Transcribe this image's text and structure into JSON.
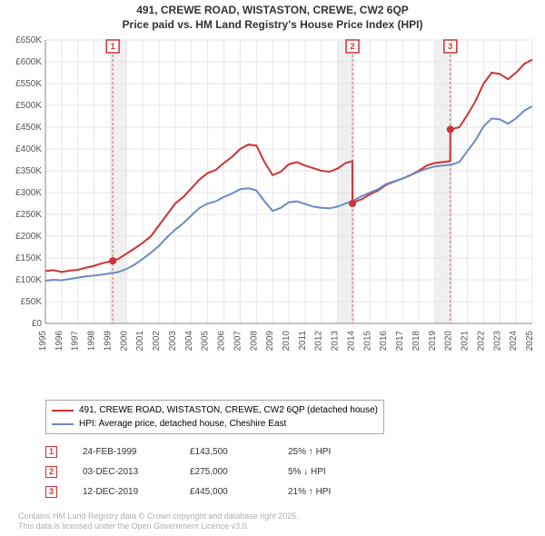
{
  "title": {
    "line1": "491, CREWE ROAD, WISTASTON, CREWE, CW2 6QP",
    "line2": "Price paid vs. HM Land Registry's House Price Index (HPI)"
  },
  "chart": {
    "type": "line",
    "background_color": "#ffffff",
    "grid_color": "#e6e6e6",
    "axis_color": "#888888",
    "shaded_band_color": "#f0f0f0",
    "marker_line_color": "#cc6666",
    "marker_box_border": "#cc3333",
    "marker_text_color": "#cc3333",
    "title_color": "#333333",
    "tick_label_color": "#555555",
    "title_fontsize": 12,
    "tick_fontsize": 10,
    "x_years": [
      1995,
      1996,
      1997,
      1998,
      1999,
      2000,
      2001,
      2002,
      2003,
      2004,
      2005,
      2006,
      2007,
      2008,
      2009,
      2010,
      2011,
      2012,
      2013,
      2014,
      2015,
      2016,
      2017,
      2018,
      2019,
      2020,
      2021,
      2022,
      2023,
      2024,
      2025
    ],
    "xlim_min": 1995,
    "xlim_max": 2025,
    "y_ticks": [
      0,
      50,
      100,
      150,
      200,
      250,
      300,
      350,
      400,
      450,
      500,
      550,
      600,
      650
    ],
    "y_tick_labels": [
      "£0",
      "£50K",
      "£100K",
      "£150K",
      "£200K",
      "£250K",
      "£300K",
      "£350K",
      "£400K",
      "£450K",
      "£500K",
      "£550K",
      "£600K",
      "£650K"
    ],
    "ylim_min": 0,
    "ylim_max": 650,
    "shaded_bands": [
      {
        "start": 1999,
        "end": 2000
      },
      {
        "start": 2013,
        "end": 2014
      },
      {
        "start": 2019,
        "end": 2020
      }
    ],
    "sale_markers": [
      {
        "num": "1",
        "year": 1999.15,
        "price": 143.5
      },
      {
        "num": "2",
        "year": 2013.92,
        "price": 275
      },
      {
        "num": "3",
        "year": 2019.95,
        "price": 445
      }
    ],
    "series": [
      {
        "name": "price_paid",
        "label": "491, CREWE ROAD, WISTASTON, CREWE, CW2 6QP (detached house)",
        "color": "#cc3333",
        "line_width": 2,
        "data": [
          [
            1995,
            120
          ],
          [
            1995.5,
            122
          ],
          [
            1996,
            118
          ],
          [
            1996.5,
            121
          ],
          [
            1997,
            123
          ],
          [
            1997.5,
            128
          ],
          [
            1998,
            132
          ],
          [
            1998.5,
            138
          ],
          [
            1999.15,
            143.5
          ],
          [
            1999.5,
            148
          ],
          [
            2000,
            160
          ],
          [
            2000.5,
            172
          ],
          [
            2001,
            185
          ],
          [
            2001.5,
            200
          ],
          [
            2002,
            225
          ],
          [
            2002.5,
            250
          ],
          [
            2003,
            275
          ],
          [
            2003.5,
            290
          ],
          [
            2004,
            310
          ],
          [
            2004.5,
            330
          ],
          [
            2005,
            345
          ],
          [
            2005.5,
            352
          ],
          [
            2006,
            368
          ],
          [
            2006.5,
            382
          ],
          [
            2007,
            400
          ],
          [
            2007.5,
            410
          ],
          [
            2008,
            408
          ],
          [
            2008.5,
            370
          ],
          [
            2009,
            340
          ],
          [
            2009.5,
            348
          ],
          [
            2010,
            365
          ],
          [
            2010.5,
            370
          ],
          [
            2011,
            362
          ],
          [
            2011.5,
            356
          ],
          [
            2012,
            350
          ],
          [
            2012.5,
            348
          ],
          [
            2013,
            355
          ],
          [
            2013.5,
            368
          ],
          [
            2013.91,
            372
          ],
          [
            2013.92,
            275
          ],
          [
            2014,
            278
          ],
          [
            2014.5,
            285
          ],
          [
            2015,
            296
          ],
          [
            2015.5,
            305
          ],
          [
            2016,
            318
          ],
          [
            2016.5,
            325
          ],
          [
            2017,
            332
          ],
          [
            2017.5,
            340
          ],
          [
            2018,
            350
          ],
          [
            2018.5,
            362
          ],
          [
            2019,
            368
          ],
          [
            2019.5,
            370
          ],
          [
            2019.94,
            372
          ],
          [
            2019.95,
            445
          ],
          [
            2020,
            445
          ],
          [
            2020.5,
            450
          ],
          [
            2021,
            478
          ],
          [
            2021.5,
            510
          ],
          [
            2022,
            550
          ],
          [
            2022.5,
            575
          ],
          [
            2023,
            572
          ],
          [
            2023.5,
            560
          ],
          [
            2024,
            575
          ],
          [
            2024.5,
            595
          ],
          [
            2025,
            605
          ]
        ]
      },
      {
        "name": "hpi",
        "label": "HPI: Average price, detached house, Cheshire East",
        "color": "#6b8bc4",
        "line_width": 2,
        "data": [
          [
            1995,
            98
          ],
          [
            1995.5,
            100
          ],
          [
            1996,
            99
          ],
          [
            1996.5,
            102
          ],
          [
            1997,
            105
          ],
          [
            1997.5,
            108
          ],
          [
            1998,
            110
          ],
          [
            1998.5,
            112
          ],
          [
            1999,
            115
          ],
          [
            1999.5,
            118
          ],
          [
            2000,
            125
          ],
          [
            2000.5,
            135
          ],
          [
            2001,
            148
          ],
          [
            2001.5,
            162
          ],
          [
            2002,
            178
          ],
          [
            2002.5,
            198
          ],
          [
            2003,
            215
          ],
          [
            2003.5,
            230
          ],
          [
            2004,
            248
          ],
          [
            2004.5,
            265
          ],
          [
            2005,
            275
          ],
          [
            2005.5,
            280
          ],
          [
            2006,
            290
          ],
          [
            2006.5,
            298
          ],
          [
            2007,
            308
          ],
          [
            2007.5,
            310
          ],
          [
            2008,
            305
          ],
          [
            2008.5,
            280
          ],
          [
            2009,
            258
          ],
          [
            2009.5,
            265
          ],
          [
            2010,
            278
          ],
          [
            2010.5,
            280
          ],
          [
            2011,
            274
          ],
          [
            2011.5,
            268
          ],
          [
            2012,
            265
          ],
          [
            2012.5,
            264
          ],
          [
            2013,
            268
          ],
          [
            2013.5,
            275
          ],
          [
            2014,
            282
          ],
          [
            2014.5,
            292
          ],
          [
            2015,
            300
          ],
          [
            2015.5,
            308
          ],
          [
            2016,
            320
          ],
          [
            2016.5,
            326
          ],
          [
            2017,
            332
          ],
          [
            2017.5,
            340
          ],
          [
            2018,
            348
          ],
          [
            2018.5,
            355
          ],
          [
            2019,
            360
          ],
          [
            2019.5,
            362
          ],
          [
            2020,
            364
          ],
          [
            2020.5,
            370
          ],
          [
            2021,
            395
          ],
          [
            2021.5,
            420
          ],
          [
            2022,
            452
          ],
          [
            2022.5,
            470
          ],
          [
            2023,
            468
          ],
          [
            2023.5,
            458
          ],
          [
            2024,
            470
          ],
          [
            2024.5,
            488
          ],
          [
            2025,
            498
          ]
        ]
      }
    ]
  },
  "legend": {
    "border_color": "#aaaaaa",
    "fontsize": 10,
    "items": [
      {
        "color": "#cc3333",
        "label": "491, CREWE ROAD, WISTASTON, CREWE, CW2 6QP (detached house)"
      },
      {
        "color": "#6b8bc4",
        "label": "HPI: Average price, detached house, Cheshire East"
      }
    ]
  },
  "sales_table": {
    "fontsize": 10,
    "text_color": "#333333",
    "rows": [
      {
        "num": "1",
        "date": "24-FEB-1999",
        "price": "£143,500",
        "hpi": "25% ↑ HPI"
      },
      {
        "num": "2",
        "date": "03-DEC-2013",
        "price": "£275,000",
        "hpi": "5% ↓ HPI"
      },
      {
        "num": "3",
        "date": "12-DEC-2019",
        "price": "£445,000",
        "hpi": "21% ↑ HPI"
      }
    ]
  },
  "footer": {
    "text_color": "#aab0b5",
    "fontsize": 9,
    "line1": "Contains HM Land Registry data © Crown copyright and database right 2025.",
    "line2": "This data is licensed under the Open Government Licence v3.0."
  }
}
